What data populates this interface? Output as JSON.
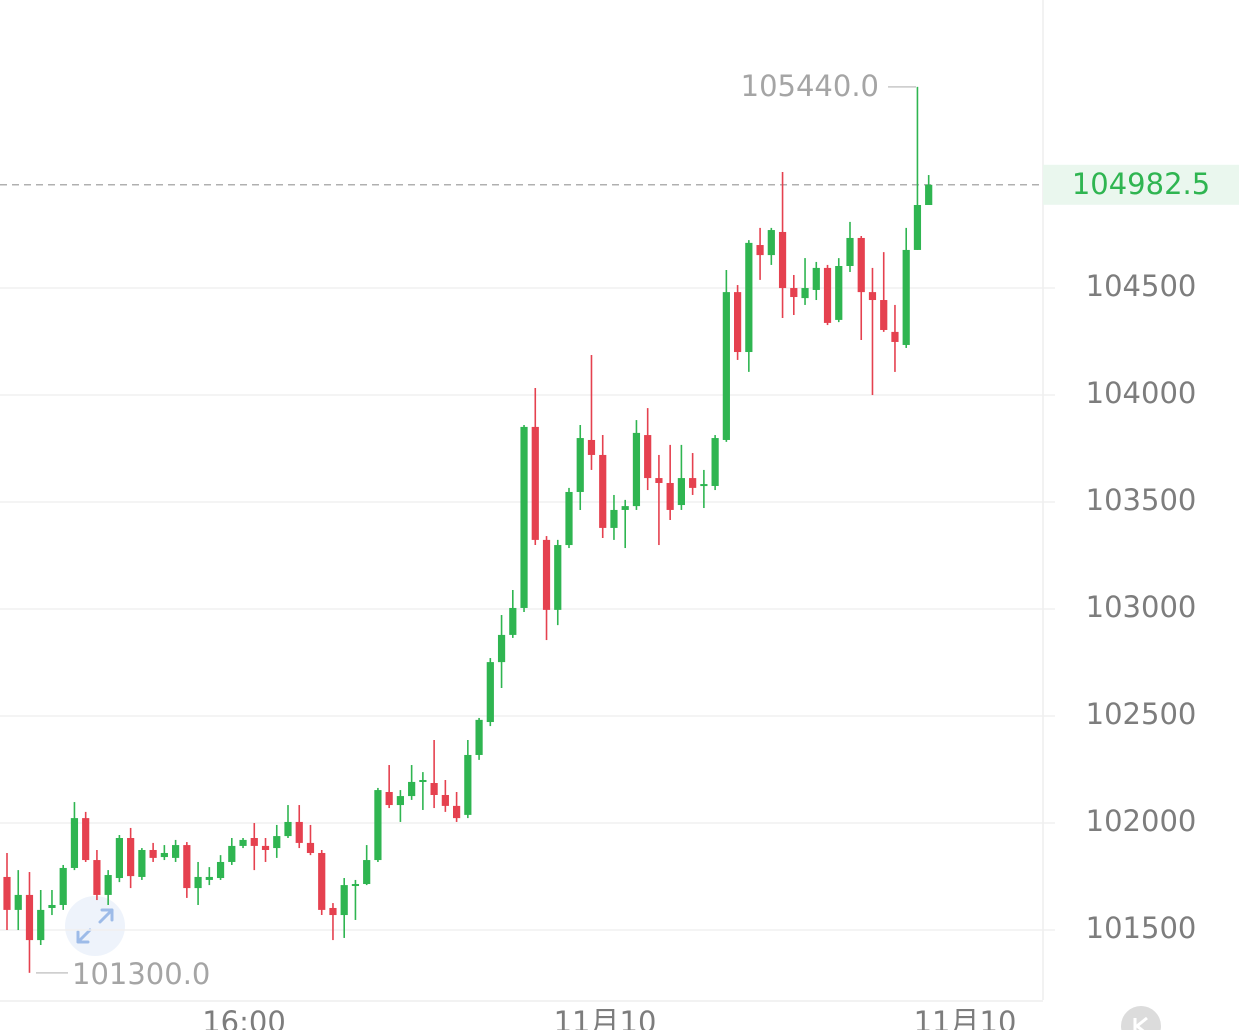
{
  "chart_data": {
    "type": "candlestick",
    "up_color": "#2fb551",
    "down_color": "#e5414f",
    "ylim": [
      101173,
      105846
    ],
    "yticks": [
      101500,
      102000,
      102500,
      103000,
      103500,
      104000,
      104500
    ],
    "grid": true,
    "last_price": 104982.5,
    "max_label": {
      "value": 105440,
      "label": "105440.0"
    },
    "min_label": {
      "value": 101300,
      "label": "101300.0"
    },
    "x_axis_labels": [
      "16:00",
      "11月10",
      "11月10"
    ],
    "open": [
      101748,
      101594,
      101664,
      101453,
      101603,
      101617,
      101790,
      102023,
      101827,
      101664,
      101743,
      101930,
      101748,
      101874,
      101841,
      101837,
      101897,
      101696,
      101734,
      101743,
      101818,
      101893,
      101930,
      101893,
      101883,
      101939,
      102005,
      101907,
      101860,
      101603,
      101570,
      101706,
      101715,
      101827,
      102145,
      102084,
      102126,
      102192,
      102187,
      102131,
      102080,
      102038,
      102318,
      102472,
      102752,
      102879,
      103005,
      103851,
      103323,
      102996,
      103299,
      103547,
      103790,
      103720,
      103379,
      103463,
      103481,
      103813,
      103612,
      103589,
      103486,
      103612,
      103575,
      103575,
      103790,
      104481,
      104201,
      104701,
      104654,
      104762,
      104500,
      104453,
      104491,
      104594,
      104351,
      104603,
      104734,
      104481,
      104444,
      104295,
      104234,
      104678,
      104888
    ],
    "high": [
      101860,
      101780,
      101771,
      101687,
      101687,
      101804,
      102098,
      102052,
      101874,
      101780,
      101944,
      101977,
      101883,
      101907,
      101897,
      101921,
      101911,
      101818,
      101794,
      101850,
      101930,
      101930,
      102000,
      101930,
      101991,
      102084,
      102084,
      101991,
      101874,
      101626,
      101743,
      101734,
      101897,
      102164,
      102271,
      102154,
      102271,
      102238,
      102388,
      102201,
      102145,
      102388,
      102491,
      102771,
      102972,
      103089,
      103860,
      104033,
      103341,
      103323,
      103566,
      103860,
      104187,
      103813,
      103533,
      103510,
      103883,
      103939,
      103720,
      103767,
      103767,
      103729,
      103650,
      103813,
      104584,
      104514,
      104724,
      104781,
      104781,
      105042,
      104561,
      104640,
      104622,
      104608,
      104640,
      104809,
      104743,
      104594,
      104668,
      104421,
      104781,
      105440,
      105028
    ],
    "low": [
      101500,
      101500,
      101300,
      101430,
      101570,
      101594,
      101780,
      101818,
      101640,
      101617,
      101724,
      101696,
      101734,
      101818,
      101827,
      101818,
      101650,
      101617,
      101710,
      101734,
      101804,
      101883,
      101780,
      101818,
      101837,
      101930,
      101883,
      101850,
      101570,
      101453,
      101463,
      101547,
      101710,
      101818,
      102070,
      102005,
      102108,
      102061,
      102070,
      102052,
      102005,
      102023,
      102295,
      102453,
      102631,
      102865,
      102986,
      103299,
      102855,
      102925,
      103285,
      103463,
      103650,
      103332,
      103323,
      103285,
      103463,
      103556,
      103299,
      103416,
      103463,
      103533,
      103472,
      103556,
      103781,
      104164,
      104108,
      104538,
      104608,
      104360,
      104374,
      104421,
      104444,
      104327,
      104341,
      104575,
      104257,
      104000,
      104295,
      104108,
      104220,
      104678,
      104888
    ],
    "close": [
      101594,
      101664,
      101453,
      101594,
      101617,
      101790,
      102023,
      101827,
      101664,
      101757,
      101930,
      101752,
      101874,
      101837,
      101860,
      101897,
      101696,
      101748,
      101748,
      101818,
      101893,
      101921,
      101893,
      101874,
      101939,
      102005,
      101907,
      101860,
      101594,
      101570,
      101710,
      101715,
      101827,
      102154,
      102084,
      102126,
      102192,
      102201,
      102131,
      102080,
      102023,
      102318,
      102482,
      102752,
      102879,
      103005,
      103851,
      103323,
      102996,
      103299,
      103547,
      103799,
      103720,
      103379,
      103463,
      103481,
      103823,
      103612,
      103589,
      103463,
      103612,
      103566,
      103584,
      103799,
      104481,
      104201,
      104711,
      104654,
      104771,
      104500,
      104458,
      104500,
      104594,
      104337,
      104603,
      104734,
      104481,
      104444,
      104304,
      104248,
      104678,
      104888,
      104982.5
    ]
  }
}
